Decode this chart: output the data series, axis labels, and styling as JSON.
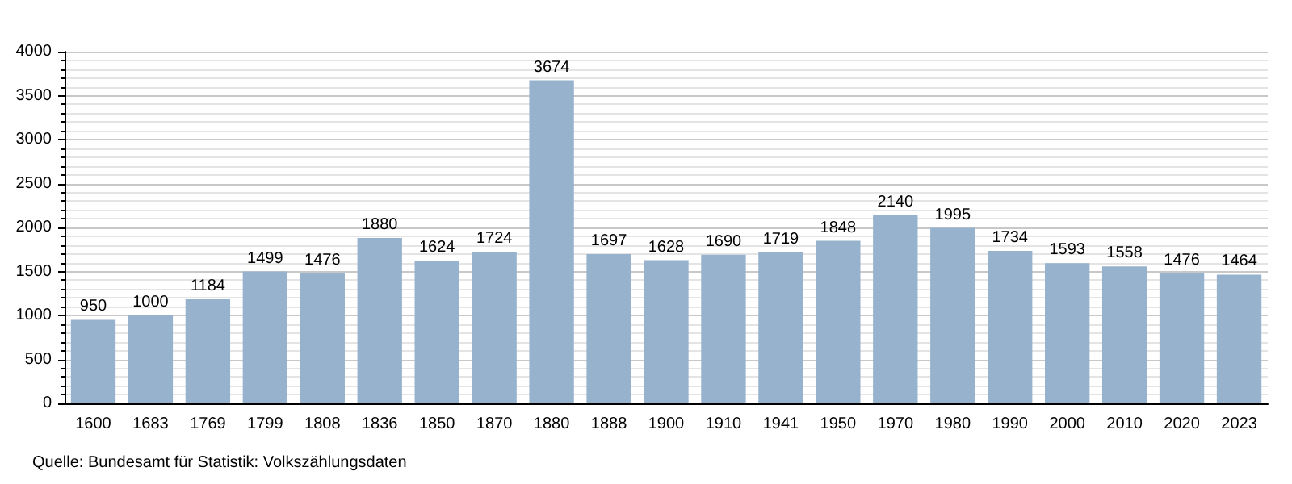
{
  "chart_data": {
    "type": "bar",
    "categories": [
      "1600",
      "1683",
      "1769",
      "1799",
      "1808",
      "1836",
      "1850",
      "1870",
      "1880",
      "1888",
      "1900",
      "1910",
      "1941",
      "1950",
      "1970",
      "1980",
      "1990",
      "2000",
      "2010",
      "2020",
      "2023"
    ],
    "values": [
      950,
      1000,
      1184,
      1499,
      1476,
      1880,
      1624,
      1724,
      3674,
      1697,
      1628,
      1690,
      1719,
      1848,
      2140,
      1995,
      1734,
      1593,
      1558,
      1476,
      1464
    ],
    "color": "#97b2cd",
    "ylim": [
      0,
      4000
    ],
    "yticks": [
      0,
      500,
      1000,
      1500,
      2000,
      2500,
      3000,
      3500,
      4000
    ],
    "grid": true,
    "data_labels": true,
    "annotations": [
      "Quelle: Bundesamt für Statistik: Volkszählungsdaten"
    ]
  }
}
